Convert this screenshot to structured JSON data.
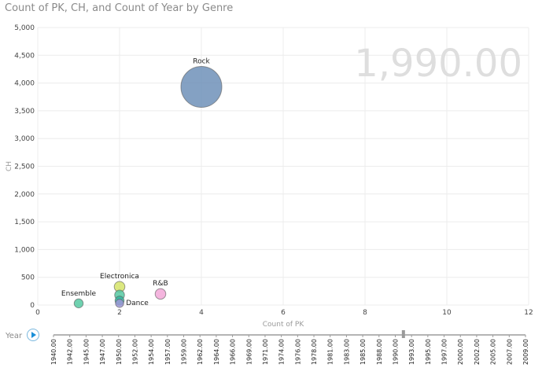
{
  "title": "Count of PK, CH, and Count of Year by Genre",
  "play_axis": {
    "label": "Year",
    "current": "1,990.00"
  },
  "chart_data": {
    "type": "scatter",
    "title": "Count of PK, CH, and Count of Year by Genre",
    "xlabel": "Count of PK",
    "ylabel": "CH",
    "xlim": [
      0,
      12
    ],
    "ylim": [
      0,
      5000
    ],
    "xticks": [
      "0",
      "2",
      "4",
      "6",
      "8",
      "10",
      "12"
    ],
    "yticks": [
      "0",
      "500",
      "1,000",
      "1,500",
      "2,000",
      "2,500",
      "3,000",
      "3,500",
      "4,000",
      "4,500",
      "5,000"
    ],
    "grid": true,
    "points": [
      {
        "label": "Rock",
        "x": 4,
        "y": 3930,
        "size": 1,
        "color": "#6f91b9"
      },
      {
        "label": "Ensemble",
        "x": 1,
        "y": 30,
        "size": 0.22,
        "color": "#56c9a2"
      },
      {
        "label": "Electronica",
        "x": 2,
        "y": 330,
        "size": 0.26,
        "color": "#d6e46a"
      },
      {
        "label": "",
        "x": 2,
        "y": 180,
        "size": 0.24,
        "color": "#56c9a2"
      },
      {
        "label": "",
        "x": 2,
        "y": 80,
        "size": 0.22,
        "color": "#35b5a0"
      },
      {
        "label": "Dance",
        "x": 2,
        "y": 30,
        "size": 0.2,
        "color": "#9b96d6"
      },
      {
        "label": "R&B",
        "x": 3,
        "y": 200,
        "size": 0.26,
        "color": "#f2a8d8"
      }
    ],
    "years": [
      "1940.00",
      "1942.00",
      "1945.00",
      "1947.00",
      "1950.00",
      "1952.00",
      "1954.00",
      "1957.00",
      "1959.00",
      "1962.00",
      "1964.00",
      "1966.00",
      "1969.00",
      "1971.00",
      "1974.00",
      "1976.00",
      "1978.00",
      "1981.00",
      "1983.00",
      "1985.00",
      "1988.00",
      "1990.00",
      "1993.00",
      "1995.00",
      "1997.00",
      "2000.00",
      "2002.00",
      "2005.00",
      "2007.00",
      "2009.00"
    ],
    "current_year": "1990.00"
  }
}
